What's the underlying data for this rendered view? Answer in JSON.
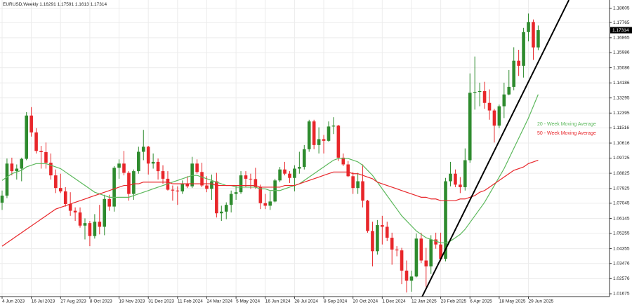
{
  "chart_data": {
    "type": "candlestick",
    "title": "EURUSD,Weekly",
    "categories": [
      "4 Jun 2023",
      null,
      null,
      null,
      null,
      null,
      "16 Jul 2023",
      null,
      null,
      null,
      null,
      null,
      "27 Aug 2023",
      null,
      null,
      null,
      null,
      null,
      "8 Oct 2023",
      null,
      null,
      null,
      null,
      null,
      "19 Nov 2023",
      null,
      null,
      null,
      null,
      null,
      "31 Dec 2023",
      null,
      null,
      null,
      null,
      null,
      "11 Feb 2024",
      null,
      null,
      null,
      null,
      null,
      "24 Mar 2024",
      null,
      null,
      null,
      null,
      null,
      "5 May 2024",
      null,
      null,
      null,
      null,
      null,
      "16 Jun 2024",
      null,
      null,
      null,
      null,
      null,
      "28 Jul 2024",
      null,
      null,
      null,
      null,
      null,
      "8 Sep 2024",
      null,
      null,
      null,
      null,
      null,
      "20 Oct 2024",
      null,
      null,
      null,
      null,
      null,
      "1 Dec 2024",
      null,
      null,
      null,
      null,
      null,
      "12 Jan 2025",
      null,
      null,
      null,
      null,
      null,
      "23 Feb 2025",
      null,
      null,
      null,
      null,
      null,
      "6 Apr 2025",
      null,
      null,
      null,
      null,
      null,
      "18 May 2025",
      null,
      null,
      null,
      null,
      null,
      "29 Jun 2025",
      null,
      null
    ],
    "open": [
      1.0708,
      1.075,
      1.094,
      1.0895,
      1.091,
      1.0968,
      1.1225,
      1.1125,
      1.1015,
      1.1008,
      1.0945,
      1.087,
      1.0795,
      1.0775,
      1.07,
      1.066,
      1.065,
      1.0572,
      1.0587,
      1.051,
      1.0595,
      1.0565,
      1.073,
      1.0685,
      1.0915,
      1.094,
      1.0885,
      1.076,
      1.0895,
      1.101,
      1.104,
      1.094,
      1.095,
      1.0895,
      1.085,
      1.0785,
      1.078,
      1.0775,
      1.082,
      1.0805,
      1.094,
      1.089,
      1.081,
      1.079,
      1.0835,
      1.0645,
      1.0655,
      1.0695,
      1.076,
      1.077,
      1.087,
      1.085,
      1.0848,
      1.08,
      1.0705,
      1.069,
      1.0715,
      1.084,
      1.0905,
      1.088,
      1.0855,
      1.091,
      1.092,
      1.1025,
      1.119,
      1.105,
      1.1085,
      1.1075,
      1.116,
      1.1165,
      1.0975,
      1.0935,
      1.0865,
      1.0795,
      1.0835,
      1.072,
      1.054,
      1.042,
      1.0575,
      1.0565,
      1.05,
      1.043,
      1.0425,
      1.0305,
      1.0245,
      1.027,
      1.0495,
      1.0365,
      1.033,
      1.049,
      1.046,
      1.0375,
      1.0835,
      1.088,
      1.0815,
      1.08,
      1.096,
      1.136,
      1.1365,
      1.137,
      1.13,
      1.1255,
      1.1165,
      1.128,
      1.135,
      1.1395,
      1.155,
      1.152,
      1.172,
      1.178,
      1.16291
    ],
    "high": [
      1.078,
      1.097,
      1.0975,
      1.0935,
      1.0975,
      1.1245,
      1.1275,
      1.115,
      1.1045,
      1.1065,
      1.1,
      1.0905,
      1.088,
      1.08,
      1.077,
      1.068,
      1.068,
      1.0615,
      1.06,
      1.064,
      1.0695,
      1.0755,
      1.0755,
      1.0925,
      1.0965,
      1.1015,
      1.0895,
      1.0905,
      1.104,
      1.114,
      1.1045,
      1.1,
      1.097,
      1.093,
      1.0895,
      1.081,
      1.0805,
      1.084,
      1.0865,
      1.098,
      1.0965,
      1.0945,
      1.0865,
      1.0875,
      1.0885,
      1.069,
      1.071,
      1.078,
      1.081,
      1.0895,
      1.0895,
      1.088,
      1.0915,
      1.0815,
      1.076,
      1.0775,
      1.085,
      1.092,
      1.095,
      1.0895,
      1.093,
      1.101,
      1.105,
      1.12,
      1.12,
      1.1155,
      1.111,
      1.119,
      1.1215,
      1.117,
      1.1,
      1.0955,
      1.089,
      1.0885,
      1.0935,
      1.0725,
      1.0595,
      1.0605,
      1.063,
      1.0595,
      1.053,
      1.045,
      1.044,
      1.0365,
      1.0305,
      1.0525,
      1.053,
      1.044,
      1.0515,
      1.053,
      1.053,
      1.0855,
      1.095,
      1.0905,
      1.086,
      1.103,
      1.1475,
      1.1575,
      1.142,
      1.1425,
      1.138,
      1.1265,
      1.129,
      1.142,
      1.1495,
      1.163,
      1.1615,
      1.1745,
      1.183,
      1.1795,
      1.17591
    ],
    "low": [
      1.0665,
      1.0735,
      1.087,
      1.0845,
      1.0835,
      1.096,
      1.11,
      1.1,
      1.091,
      1.091,
      1.0845,
      1.0765,
      1.0765,
      1.0685,
      1.063,
      1.06,
      1.056,
      1.049,
      1.045,
      1.0495,
      1.052,
      1.0515,
      1.066,
      1.0655,
      1.085,
      1.087,
      1.072,
      1.0725,
      1.088,
      1.096,
      1.0875,
      1.091,
      1.0845,
      1.082,
      1.078,
      1.072,
      1.0695,
      1.076,
      1.0795,
      1.0795,
      1.088,
      1.08,
      1.077,
      1.0725,
      1.062,
      1.06,
      1.061,
      1.065,
      1.0725,
      1.076,
      1.08,
      1.079,
      1.079,
      1.067,
      1.067,
      1.0665,
      1.071,
      1.083,
      1.087,
      1.0825,
      1.0775,
      1.088,
      1.0905,
      1.101,
      1.1025,
      1.1,
      1.1,
      1.107,
      1.1115,
      1.0955,
      1.0925,
      1.086,
      1.076,
      1.076,
      1.068,
      1.053,
      1.033,
      1.04,
      1.046,
      1.048,
      1.034,
      1.039,
      1.0225,
      1.0175,
      1.018,
      1.0265,
      1.035,
      1.021,
      1.0285,
      1.0435,
      1.036,
      1.036,
      1.0805,
      1.08,
      1.0765,
      1.078,
      1.0945,
      1.126,
      1.128,
      1.1265,
      1.12,
      1.1065,
      1.115,
      1.121,
      1.1345,
      1.1375,
      1.146,
      1.145,
      1.1665,
      1.1555,
      1.1613
    ],
    "close": [
      1.075,
      1.094,
      1.0895,
      1.091,
      1.0968,
      1.1225,
      1.1125,
      1.1015,
      1.1008,
      1.0945,
      1.087,
      1.0795,
      1.0775,
      1.07,
      1.066,
      1.065,
      1.0572,
      1.0587,
      1.051,
      1.0595,
      1.0565,
      1.073,
      1.0685,
      1.0915,
      1.094,
      1.0885,
      1.076,
      1.0895,
      1.101,
      1.104,
      1.094,
      1.095,
      1.0895,
      1.085,
      1.0785,
      1.078,
      1.0775,
      1.082,
      1.0805,
      1.094,
      1.089,
      1.081,
      1.079,
      1.0835,
      1.0645,
      1.0655,
      1.0695,
      1.076,
      1.077,
      1.087,
      1.085,
      1.0848,
      1.08,
      1.0705,
      1.069,
      1.0715,
      1.084,
      1.0905,
      1.088,
      1.0855,
      1.091,
      1.092,
      1.1025,
      1.119,
      1.105,
      1.1085,
      1.1075,
      1.116,
      1.1165,
      1.0975,
      1.0935,
      1.0865,
      1.0795,
      1.0835,
      1.072,
      1.054,
      1.042,
      1.0575,
      1.0565,
      1.05,
      1.043,
      1.0425,
      1.0305,
      1.0245,
      1.027,
      1.0495,
      1.0365,
      1.033,
      1.049,
      1.046,
      1.0375,
      1.0835,
      1.088,
      1.0815,
      1.08,
      1.096,
      1.136,
      1.1365,
      1.137,
      1.13,
      1.1255,
      1.1165,
      1.128,
      1.135,
      1.1395,
      1.155,
      1.152,
      1.172,
      1.178,
      1.16291,
      1.17314
    ],
    "up_color": "#2e8b2e",
    "down_color": "#e8262a",
    "ylim": [
      1.01509,
      1.19104
    ],
    "yticks": [
      1.18605,
      1.17765,
      1.16865,
      1.15986,
      1.15086,
      1.14186,
      1.13295,
      1.12395,
      1.11516,
      1.10616,
      1.09725,
      1.08825,
      1.07925,
      1.07045,
      1.06145,
      1.05255,
      1.04355,
      1.03476,
      1.02576,
      1.01675
    ],
    "grid": true,
    "moving_averages": [
      {
        "name": "20 - Week Moving Average",
        "color": "#5cb85c",
        "values": [
          1.084,
          1.086,
          1.088,
          1.089,
          1.09,
          1.092,
          1.093,
          1.094,
          1.094,
          1.094,
          1.093,
          1.092,
          1.091,
          1.089,
          1.087,
          1.085,
          1.083,
          1.081,
          1.079,
          1.077,
          1.076,
          1.075,
          1.074,
          1.074,
          1.074,
          1.074,
          1.074,
          1.075,
          1.076,
          1.077,
          1.078,
          1.079,
          1.08,
          1.081,
          1.082,
          1.083,
          1.084,
          1.085,
          1.086,
          1.087,
          1.087,
          1.086,
          1.085,
          1.084,
          1.083,
          1.082,
          1.081,
          1.081,
          1.08,
          1.08,
          1.08,
          1.08,
          1.08,
          1.079,
          1.079,
          1.078,
          1.078,
          1.078,
          1.079,
          1.08,
          1.081,
          1.082,
          1.084,
          1.086,
          1.088,
          1.09,
          1.092,
          1.094,
          1.096,
          1.097,
          1.097,
          1.097,
          1.096,
          1.095,
          1.093,
          1.09,
          1.087,
          1.083,
          1.079,
          1.075,
          1.071,
          1.067,
          1.063,
          1.06,
          1.057,
          1.054,
          1.052,
          1.05,
          1.049,
          1.048,
          1.047,
          1.047,
          1.048,
          1.05,
          1.052,
          1.055,
          1.059,
          1.063,
          1.067,
          1.071,
          1.076,
          1.081,
          1.086,
          1.091,
          1.097,
          1.103,
          1.109,
          1.115,
          1.121,
          1.128,
          1.135
        ]
      },
      {
        "name": "50 - Week Moving Average",
        "color": "#e8262a",
        "values": [
          1.045,
          1.047,
          1.049,
          1.051,
          1.053,
          1.055,
          1.057,
          1.059,
          1.061,
          1.063,
          1.065,
          1.067,
          1.068,
          1.069,
          1.07,
          1.071,
          1.072,
          1.073,
          1.074,
          1.075,
          1.076,
          1.077,
          1.078,
          1.079,
          1.08,
          1.081,
          1.081,
          1.082,
          1.082,
          1.083,
          1.083,
          1.083,
          1.083,
          1.083,
          1.083,
          1.082,
          1.082,
          1.082,
          1.082,
          1.082,
          1.082,
          1.082,
          1.082,
          1.082,
          1.081,
          1.081,
          1.081,
          1.081,
          1.081,
          1.081,
          1.081,
          1.081,
          1.081,
          1.08,
          1.08,
          1.08,
          1.08,
          1.08,
          1.081,
          1.081,
          1.081,
          1.082,
          1.083,
          1.084,
          1.085,
          1.086,
          1.087,
          1.088,
          1.089,
          1.089,
          1.089,
          1.089,
          1.088,
          1.088,
          1.087,
          1.086,
          1.085,
          1.083,
          1.082,
          1.081,
          1.08,
          1.079,
          1.078,
          1.077,
          1.076,
          1.075,
          1.074,
          1.074,
          1.073,
          1.073,
          1.072,
          1.072,
          1.072,
          1.072,
          1.073,
          1.073,
          1.074,
          1.075,
          1.077,
          1.078,
          1.08,
          1.082,
          1.084,
          1.086,
          1.088,
          1.09,
          1.091,
          1.092,
          1.094,
          1.095,
          1.096
        ]
      }
    ],
    "trendline": {
      "x": [
        86.2,
        116.3
      ],
      "y": [
        1.0151,
        1.191
      ],
      "color": "#000000"
    }
  }
}
